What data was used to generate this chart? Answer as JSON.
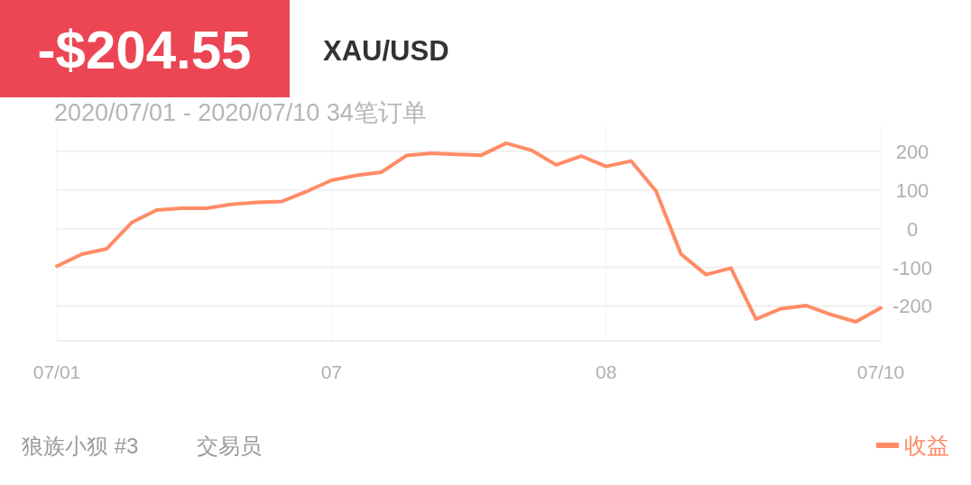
{
  "chart_data": {
    "type": "line",
    "title": "XAU/USD",
    "subtitle": "2020/07/01 - 2020/07/10  34笔订单",
    "annotations": [
      "-$204.55",
      "狼族小狈 #3",
      "交易员"
    ],
    "categories": [
      "07/01",
      null,
      null,
      null,
      null,
      null,
      null,
      null,
      null,
      null,
      null,
      "07",
      null,
      null,
      null,
      null,
      null,
      null,
      null,
      null,
      null,
      null,
      "08",
      null,
      null,
      null,
      null,
      null,
      null,
      null,
      null,
      null,
      null,
      "07/10"
    ],
    "series": [
      {
        "name": "收益",
        "color": "#ff8c66",
        "values": [
          -97,
          -66,
          -52,
          16,
          48,
          53,
          53,
          63,
          68,
          70,
          96,
          125,
          138,
          146,
          189,
          195,
          192,
          190,
          221,
          203,
          165,
          188,
          161,
          175,
          97,
          -66,
          -119,
          -102,
          -234,
          -207,
          -199,
          -222,
          -241,
          -205
        ]
      }
    ],
    "ylim": [
      -290,
      265
    ],
    "yticks": [
      -200,
      -100,
      0,
      100,
      200
    ],
    "grid": true,
    "legend": "bottom right"
  }
}
